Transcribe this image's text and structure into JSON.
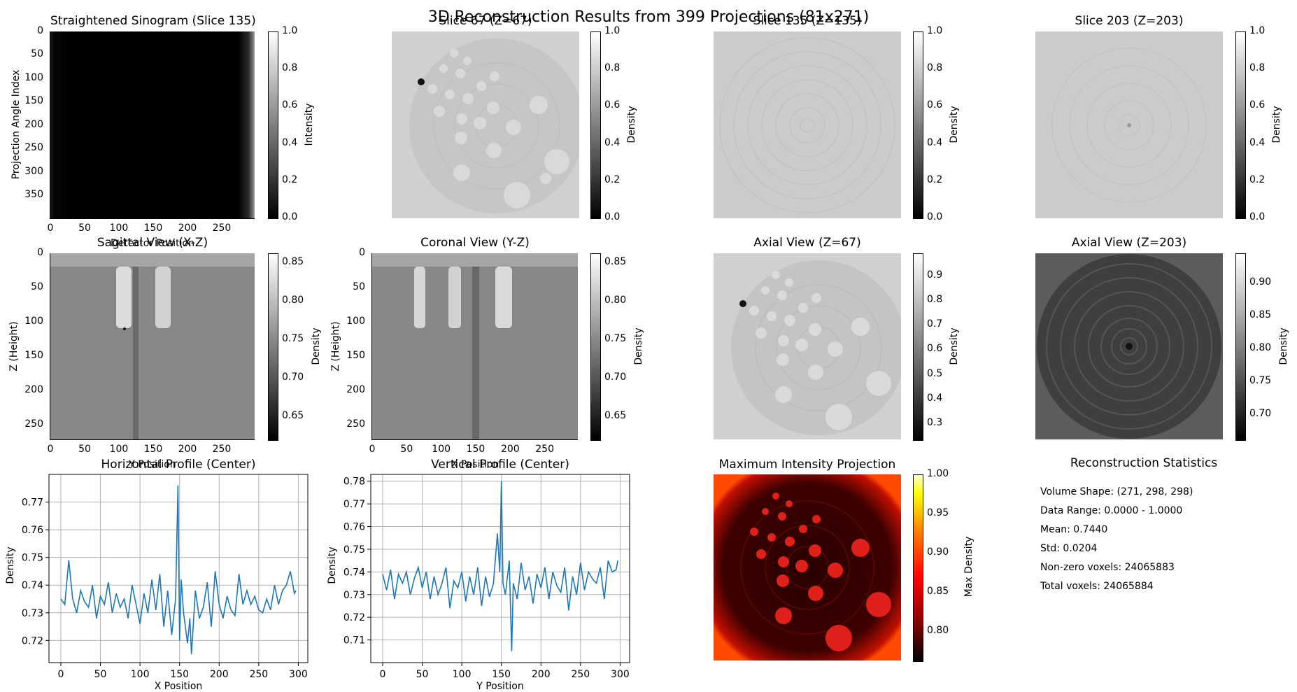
{
  "suptitle": "3D Reconstruction Results from 399 Projections (81x271)",
  "panels": {
    "sinogram": {
      "title": "Straightened Sinogram (Slice 135)",
      "ylabel": "Projection Angle Index",
      "xlabel": "Detector Position",
      "cbar_label": "Intensity",
      "xticks": [
        "0",
        "50",
        "100",
        "150",
        "200",
        "250"
      ],
      "yticks": [
        "0",
        "50",
        "100",
        "150",
        "200",
        "250",
        "300",
        "350"
      ],
      "cbticks": [
        "0.0",
        "0.2",
        "0.4",
        "0.6",
        "0.8",
        "1.0"
      ]
    },
    "slice67": {
      "title": "Slice 67 (Z=67)",
      "cbar_label": "Density",
      "cbticks": [
        "0.0",
        "0.2",
        "0.4",
        "0.6",
        "0.8",
        "1.0"
      ]
    },
    "slice135": {
      "title": "Slice 135 (Z=135)",
      "cbar_label": "Density",
      "cbticks": [
        "0.0",
        "0.2",
        "0.4",
        "0.6",
        "0.8",
        "1.0"
      ]
    },
    "slice203": {
      "title": "Slice 203 (Z=203)",
      "cbar_label": "Density",
      "cbticks": [
        "0.0",
        "0.2",
        "0.4",
        "0.6",
        "0.8",
        "1.0"
      ]
    },
    "sagittal": {
      "title": "Sagittal View (X-Z)",
      "ylabel": "Z (Height)",
      "xlabel": "Y Position",
      "cbar_label": "Density",
      "xticks": [
        "0",
        "50",
        "100",
        "150",
        "200",
        "250"
      ],
      "yticks": [
        "0",
        "50",
        "100",
        "150",
        "200",
        "250"
      ],
      "cbticks": [
        "0.65",
        "0.70",
        "0.75",
        "0.80",
        "0.85"
      ]
    },
    "coronal": {
      "title": "Coronal View (Y-Z)",
      "ylabel": "Z (Height)",
      "xlabel": "X Position",
      "cbar_label": "Density",
      "xticks": [
        "0",
        "50",
        "100",
        "150",
        "200",
        "250"
      ],
      "yticks": [
        "0",
        "50",
        "100",
        "150",
        "200",
        "250"
      ],
      "cbticks": [
        "0.65",
        "0.70",
        "0.75",
        "0.80",
        "0.85"
      ]
    },
    "axial67": {
      "title": "Axial View (Z=67)",
      "cbar_label": "Density",
      "cbticks": [
        "0.3",
        "0.4",
        "0.5",
        "0.6",
        "0.7",
        "0.8",
        "0.9"
      ]
    },
    "axial203": {
      "title": "Axial View (Z=203)",
      "cbar_label": "Density",
      "cbticks": [
        "0.70",
        "0.75",
        "0.80",
        "0.85",
        "0.90"
      ]
    },
    "hprofile": {
      "title": "Horizontal Profile (Center)",
      "ylabel": "Density",
      "xlabel": "X Position"
    },
    "vprofile": {
      "title": "Vertical Profile (Center)",
      "ylabel": "Density",
      "xlabel": "Y Position"
    },
    "mip": {
      "title": "Maximum Intensity Projection",
      "cbar_label": "Max Density",
      "cbticks": [
        "0.80",
        "0.85",
        "0.90",
        "0.95",
        "1.00"
      ]
    }
  },
  "stats": {
    "title": "Reconstruction Statistics",
    "lines": [
      "Volume Shape: (271, 298, 298)",
      "Data Range: 0.0000 - 1.0000",
      "Mean: 0.7440",
      "Std: 0.0204",
      "Non-zero voxels: 24065883",
      "Total voxels: 24065884"
    ]
  },
  "colors": {
    "line": "#1f77b4",
    "grid": "#b0b0b0"
  },
  "chart_data": [
    {
      "type": "line",
      "title": "Horizontal Profile (Center)",
      "xlabel": "X Position",
      "ylabel": "Density",
      "xlim": [
        -15,
        312
      ],
      "ylim": [
        0.712,
        0.78
      ],
      "xticks": [
        0,
        50,
        100,
        150,
        200,
        250,
        300
      ],
      "yticks": [
        0.72,
        0.73,
        0.74,
        0.75,
        0.76,
        0.77
      ],
      "x": [
        0,
        5,
        10,
        15,
        20,
        25,
        30,
        35,
        40,
        45,
        50,
        55,
        60,
        65,
        70,
        75,
        80,
        85,
        90,
        95,
        100,
        105,
        110,
        115,
        120,
        125,
        130,
        135,
        140,
        145,
        148,
        150,
        152,
        155,
        160,
        163,
        165,
        170,
        175,
        180,
        185,
        190,
        195,
        200,
        205,
        210,
        215,
        220,
        225,
        230,
        235,
        240,
        245,
        250,
        255,
        260,
        265,
        270,
        275,
        280,
        285,
        290,
        295,
        297
      ],
      "y": [
        0.735,
        0.733,
        0.749,
        0.735,
        0.73,
        0.738,
        0.734,
        0.732,
        0.74,
        0.728,
        0.736,
        0.733,
        0.741,
        0.73,
        0.737,
        0.732,
        0.735,
        0.728,
        0.74,
        0.733,
        0.726,
        0.737,
        0.73,
        0.742,
        0.731,
        0.744,
        0.725,
        0.738,
        0.722,
        0.735,
        0.776,
        0.72,
        0.742,
        0.73,
        0.719,
        0.728,
        0.715,
        0.738,
        0.728,
        0.732,
        0.741,
        0.725,
        0.745,
        0.733,
        0.728,
        0.736,
        0.731,
        0.729,
        0.744,
        0.733,
        0.738,
        0.733,
        0.736,
        0.731,
        0.73,
        0.735,
        0.731,
        0.74,
        0.733,
        0.738,
        0.74,
        0.745,
        0.737,
        0.738
      ]
    },
    {
      "type": "line",
      "title": "Vertical Profile (Center)",
      "xlabel": "Y Position",
      "ylabel": "Density",
      "xlim": [
        -15,
        312
      ],
      "ylim": [
        0.7,
        0.783
      ],
      "xticks": [
        0,
        50,
        100,
        150,
        200,
        250,
        300
      ],
      "yticks": [
        0.71,
        0.72,
        0.73,
        0.74,
        0.75,
        0.76,
        0.77,
        0.78
      ],
      "x": [
        0,
        5,
        10,
        15,
        20,
        25,
        30,
        35,
        40,
        45,
        50,
        55,
        60,
        65,
        70,
        75,
        80,
        85,
        90,
        95,
        100,
        105,
        110,
        115,
        120,
        125,
        130,
        135,
        140,
        145,
        148,
        150,
        152,
        155,
        160,
        163,
        165,
        170,
        175,
        180,
        185,
        190,
        195,
        200,
        205,
        210,
        215,
        220,
        225,
        230,
        235,
        240,
        245,
        250,
        255,
        260,
        265,
        270,
        275,
        280,
        285,
        290,
        295,
        297
      ],
      "y": [
        0.739,
        0.732,
        0.741,
        0.728,
        0.739,
        0.735,
        0.74,
        0.73,
        0.737,
        0.742,
        0.733,
        0.74,
        0.728,
        0.738,
        0.73,
        0.735,
        0.742,
        0.724,
        0.736,
        0.733,
        0.74,
        0.727,
        0.738,
        0.73,
        0.742,
        0.725,
        0.738,
        0.729,
        0.735,
        0.757,
        0.74,
        0.78,
        0.735,
        0.73,
        0.745,
        0.705,
        0.735,
        0.728,
        0.744,
        0.732,
        0.738,
        0.726,
        0.739,
        0.733,
        0.742,
        0.728,
        0.74,
        0.734,
        0.731,
        0.742,
        0.723,
        0.738,
        0.73,
        0.744,
        0.732,
        0.74,
        0.737,
        0.735,
        0.742,
        0.728,
        0.745,
        0.74,
        0.741,
        0.745
      ]
    }
  ]
}
